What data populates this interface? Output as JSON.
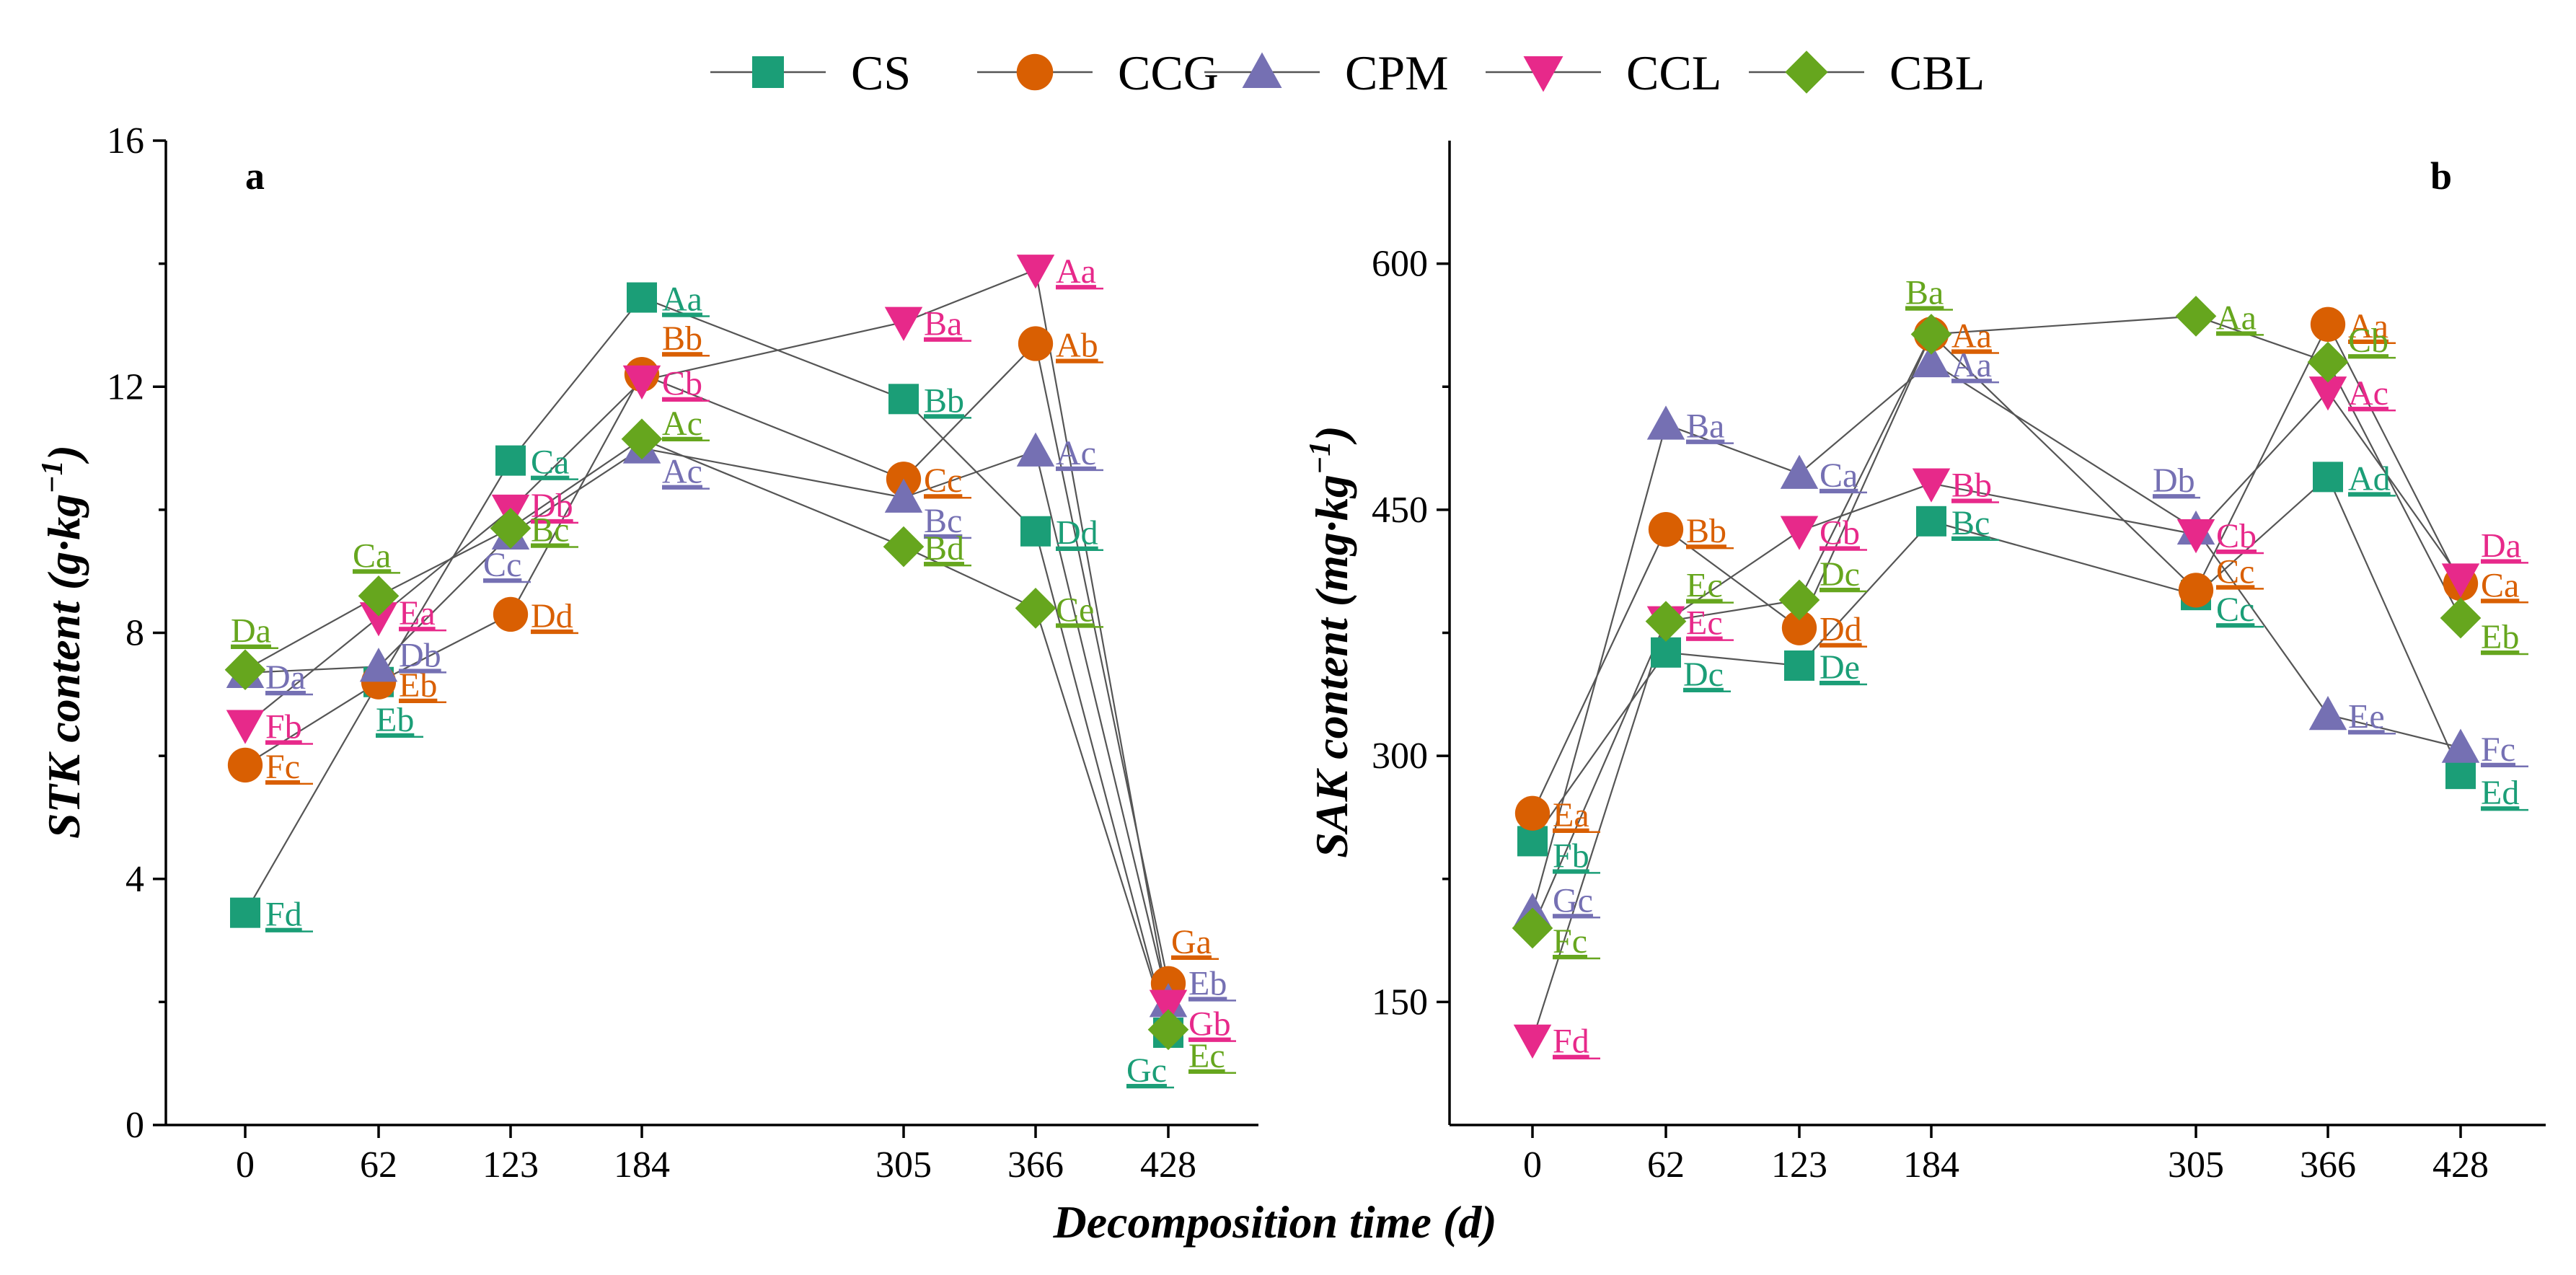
{
  "chart_data": [
    {
      "type": "line",
      "panel": "a",
      "ylabel": "STK content (g·kg⁻¹)",
      "xlabel": "Decomposition time (d)",
      "x": [
        0,
        62,
        123,
        184,
        305,
        366,
        428
      ],
      "xticks": [
        "0",
        "62",
        "123",
        "184",
        "305",
        "366",
        "428"
      ],
      "ylim": [
        0,
        16
      ],
      "yticks": [
        "0",
        "4",
        "8",
        "12",
        "16"
      ],
      "series": [
        {
          "name": "CS",
          "values": [
            3.45,
            7.2,
            10.8,
            13.45,
            11.8,
            9.65,
            1.5
          ],
          "labels": [
            "Fd",
            "Eb",
            "Ca",
            "Aa",
            "Bb",
            "Dd",
            "Gc"
          ]
        },
        {
          "name": "CCG",
          "values": [
            5.85,
            7.2,
            8.3,
            12.2,
            10.5,
            12.7,
            2.3
          ],
          "labels": [
            "Fc",
            "Eb",
            "Dd",
            "Bb",
            "Cc",
            "Ab",
            "Ga"
          ]
        },
        {
          "name": "CPM",
          "values": [
            7.35,
            7.45,
            9.6,
            11.0,
            10.2,
            10.95,
            2.0
          ],
          "labels": [
            "Da",
            "Db",
            "Cc",
            "Ac",
            "Bc",
            "Ac",
            "Eb"
          ]
        },
        {
          "name": "CCL",
          "values": [
            6.5,
            8.25,
            10.0,
            12.1,
            13.05,
            13.9,
            1.95
          ],
          "labels": [
            "Fb",
            "Ea",
            "Db",
            "Cb",
            "Ba",
            "Aa",
            "Gb"
          ]
        },
        {
          "name": "CBL",
          "values": [
            7.4,
            8.6,
            9.7,
            11.15,
            9.4,
            8.4,
            1.55
          ],
          "labels": [
            "Da",
            "Ca",
            "Bc",
            "Ac",
            "Bd",
            "Ce",
            "Ec"
          ]
        }
      ]
    },
    {
      "type": "line",
      "panel": "b",
      "ylabel": "SAK content (mg·kg⁻¹)",
      "xlabel": "Decomposition time (d)",
      "x": [
        0,
        62,
        123,
        184,
        305,
        366,
        428
      ],
      "xticks": [
        "0",
        "62",
        "123",
        "184",
        "305",
        "366",
        "428"
      ],
      "ylim": [
        75,
        675
      ],
      "yticks": [
        "150",
        "300",
        "450",
        "600"
      ],
      "series": [
        {
          "name": "CS",
          "values": [
            248,
            363,
            355,
            443,
            398,
            470,
            289
          ],
          "labels": [
            "Fb",
            "Dc",
            "De",
            "Bc",
            "Cc",
            "Ad",
            "Ed"
          ]
        },
        {
          "name": "CCG",
          "values": [
            265,
            438,
            378,
            557,
            401,
            563,
            405
          ],
          "labels": [
            "Ea",
            "Bb",
            "Dd",
            "Aa",
            "Cc",
            "Aa",
            "Ca"
          ]
        },
        {
          "name": "CPM",
          "values": [
            205,
            502,
            472,
            540,
            438,
            325,
            305
          ],
          "labels": [
            "Gc",
            "Ba",
            "Ca",
            "Aa",
            "Db",
            "Ee",
            "Fc"
          ]
        },
        {
          "name": "CCL",
          "values": [
            127,
            382,
            437,
            466,
            435,
            522,
            408
          ],
          "labels": [
            "Fd",
            "Ec",
            "Cb",
            "Bb",
            "Cb",
            "Ac",
            "Da"
          ]
        },
        {
          "name": "CBL",
          "values": [
            195,
            382,
            395,
            557,
            568,
            540,
            384
          ],
          "labels": [
            "Fc",
            "Ec",
            "Dc",
            "Ba",
            "Aa",
            "Cb",
            "Eb"
          ]
        }
      ]
    }
  ],
  "legend": [
    {
      "name": "CS",
      "color": "#1b9e77",
      "marker": "square"
    },
    {
      "name": "CCG",
      "color": "#d95f02",
      "marker": "circle"
    },
    {
      "name": "CPM",
      "color": "#7570b3",
      "marker": "triangle-up"
    },
    {
      "name": "CCL",
      "color": "#e7298a",
      "marker": "triangle-down"
    },
    {
      "name": "CBL",
      "color": "#66a61e",
      "marker": "diamond"
    }
  ],
  "texts": {
    "panel_a": "a",
    "panel_b": "b",
    "xlabel": "Decomposition time (d)",
    "ylabel_a": "STK content (g·kg",
    "ylabel_a_sup": "−1",
    "ylabel_a_end": ")",
    "ylabel_b": "SAK content (mg·kg",
    "ylabel_b_sup": "−1",
    "ylabel_b_end": ")"
  }
}
